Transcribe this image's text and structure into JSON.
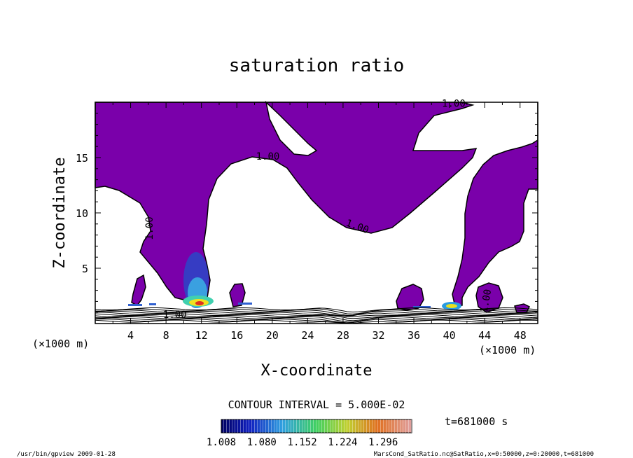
{
  "chart_data": {
    "type": "heatmap",
    "title": "saturation ratio",
    "xlabel": "X-coordinate",
    "ylabel": "Z-coordinate",
    "x_unit": "(×1000 m)",
    "z_unit": "(×1000 m)",
    "xlim": [
      0,
      50
    ],
    "ylim": [
      0,
      20
    ],
    "x_ticks": [
      "4",
      "8",
      "12",
      "16",
      "20",
      "24",
      "28",
      "32",
      "36",
      "40",
      "44",
      "48"
    ],
    "y_ticks": [
      "5",
      "10",
      "15"
    ],
    "contour_interval_text": "CONTOUR INTERVAL = 5.000E-02",
    "time_text": "t=681000 s",
    "contour_labels": [
      {
        "text": "1.00",
        "x": 40.5,
        "z": 19.6
      },
      {
        "text": "1.00",
        "x": 19.5,
        "z": 14.8
      },
      {
        "text": "1.00",
        "x": 29.5,
        "z": 8.5
      },
      {
        "text": "1.00",
        "x": 6.5,
        "z": 8.6
      },
      {
        "text": "1.00",
        "x": 44.5,
        "z": 2.0
      },
      {
        "text": "1.00",
        "x": 9.0,
        "z": 0.5
      }
    ],
    "colorbar_ticks": [
      "1.008",
      "1.080",
      "1.152",
      "1.224",
      "1.296"
    ],
    "colorbar_range": [
      1.008,
      1.296
    ],
    "colors": {
      "supersaturated_fill": "#7a00aa",
      "contour_line": "#000000"
    },
    "footer_left": "/usr/bin/gpview  2009-01-28",
    "footer_right": "MarsCond_SatRatio.nc@SatRatio,x=0:50000,z=0:20000,t=681000"
  }
}
